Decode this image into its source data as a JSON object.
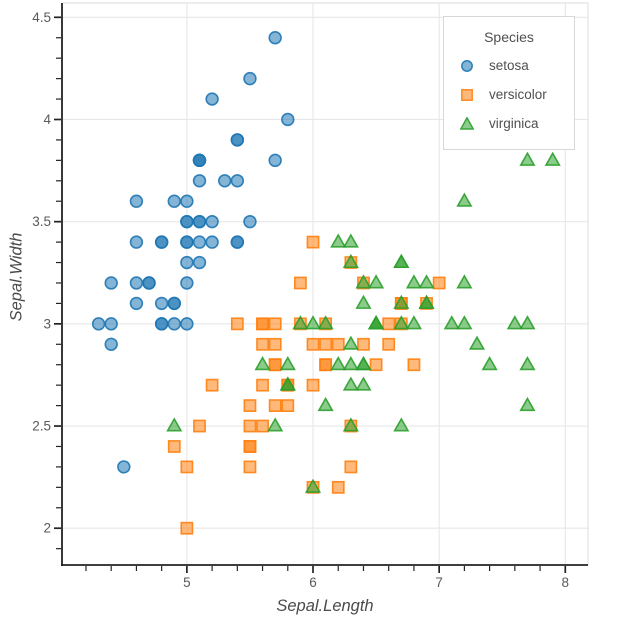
{
  "figure": {
    "background": "#ffffff"
  },
  "axes": {
    "x": {
      "title": "Sepal.Length",
      "major_ticks": [
        {
          "v": 5,
          "label": "5"
        },
        {
          "v": 6,
          "label": "6"
        },
        {
          "v": 7,
          "label": "7"
        },
        {
          "v": 8,
          "label": "8"
        }
      ],
      "minor_ticks": [
        4.2,
        4.4,
        4.6,
        4.8,
        5.2,
        5.4,
        5.6,
        5.8,
        6.2,
        6.4,
        6.6,
        6.8,
        7.2,
        7.4,
        7.6,
        7.8
      ]
    },
    "y": {
      "title": "Sepal.Width",
      "major_ticks": [
        {
          "v": 2,
          "label": "2"
        },
        {
          "v": 2.5,
          "label": "2.5"
        },
        {
          "v": 3,
          "label": "3"
        },
        {
          "v": 3.5,
          "label": "3.5"
        },
        {
          "v": 4,
          "label": "4"
        },
        {
          "v": 4.5,
          "label": "4.5"
        }
      ],
      "minor_ticks": [
        1.9,
        2.1,
        2.2,
        2.3,
        2.4,
        2.6,
        2.7,
        2.8,
        2.9,
        3.1,
        3.2,
        3.3,
        3.4,
        3.6,
        3.7,
        3.8,
        3.9,
        4.1,
        4.2,
        4.3,
        4.4
      ]
    }
  },
  "legend": {
    "title": "Species",
    "items": [
      {
        "label": "setosa",
        "marker": "circle",
        "color": "#1f77b4"
      },
      {
        "label": "versicolor",
        "marker": "square",
        "color": "#ff7f0e"
      },
      {
        "label": "virginica",
        "marker": "triangle",
        "color": "#2ca02c"
      }
    ]
  },
  "style": {
    "grid_color": "#e7e7e7",
    "frame_color": "#e2e2e2",
    "spine_color": "#222222",
    "tick_color": "#222222",
    "tick_label_color": "#5a5a5a",
    "axis_title_color": "#4a4a4a",
    "legend_border_color": "#d8d8d8",
    "fill_opacity": 0.55,
    "stroke_opacity": 0.9
  },
  "chart_data": {
    "type": "scatter",
    "title": "",
    "xlabel": "Sepal.Length",
    "ylabel": "Sepal.Width",
    "xlim": [
      4.01,
      8.18
    ],
    "ylim": [
      1.82,
      4.57
    ],
    "x_ticks": [
      5,
      6,
      7,
      8
    ],
    "y_ticks": [
      2,
      2.5,
      3,
      3.5,
      4,
      4.5
    ],
    "grid": "major",
    "legend_title": "Species",
    "legend_position": "upper right",
    "series": [
      {
        "name": "setosa",
        "marker": "circle",
        "color": "#1f77b4",
        "points": [
          [
            5.1,
            3.5
          ],
          [
            4.9,
            3.0
          ],
          [
            4.7,
            3.2
          ],
          [
            4.6,
            3.1
          ],
          [
            5.0,
            3.6
          ],
          [
            5.4,
            3.9
          ],
          [
            4.6,
            3.4
          ],
          [
            5.0,
            3.4
          ],
          [
            4.4,
            2.9
          ],
          [
            4.9,
            3.1
          ],
          [
            5.4,
            3.7
          ],
          [
            4.8,
            3.4
          ],
          [
            4.8,
            3.0
          ],
          [
            4.3,
            3.0
          ],
          [
            5.8,
            4.0
          ],
          [
            5.7,
            4.4
          ],
          [
            5.4,
            3.9
          ],
          [
            5.1,
            3.5
          ],
          [
            5.7,
            3.8
          ],
          [
            5.1,
            3.8
          ],
          [
            5.4,
            3.4
          ],
          [
            5.1,
            3.7
          ],
          [
            4.6,
            3.6
          ],
          [
            5.1,
            3.3
          ],
          [
            4.8,
            3.4
          ],
          [
            5.0,
            3.0
          ],
          [
            5.0,
            3.4
          ],
          [
            5.2,
            3.5
          ],
          [
            5.2,
            3.4
          ],
          [
            4.7,
            3.2
          ],
          [
            4.8,
            3.1
          ],
          [
            5.4,
            3.4
          ],
          [
            5.2,
            4.1
          ],
          [
            5.5,
            4.2
          ],
          [
            4.9,
            3.1
          ],
          [
            5.0,
            3.2
          ],
          [
            5.5,
            3.5
          ],
          [
            4.9,
            3.6
          ],
          [
            4.4,
            3.0
          ],
          [
            5.1,
            3.4
          ],
          [
            5.0,
            3.5
          ],
          [
            4.5,
            2.3
          ],
          [
            4.4,
            3.2
          ],
          [
            5.0,
            3.5
          ],
          [
            5.1,
            3.8
          ],
          [
            4.8,
            3.0
          ],
          [
            5.1,
            3.8
          ],
          [
            4.6,
            3.2
          ],
          [
            5.3,
            3.7
          ],
          [
            5.0,
            3.3
          ]
        ]
      },
      {
        "name": "versicolor",
        "marker": "square",
        "color": "#ff7f0e",
        "points": [
          [
            7.0,
            3.2
          ],
          [
            6.4,
            3.2
          ],
          [
            6.9,
            3.1
          ],
          [
            5.5,
            2.3
          ],
          [
            6.5,
            2.8
          ],
          [
            5.7,
            2.8
          ],
          [
            6.3,
            3.3
          ],
          [
            4.9,
            2.4
          ],
          [
            6.6,
            2.9
          ],
          [
            5.2,
            2.7
          ],
          [
            5.0,
            2.0
          ],
          [
            5.9,
            3.0
          ],
          [
            6.0,
            2.2
          ],
          [
            6.1,
            2.9
          ],
          [
            5.6,
            2.9
          ],
          [
            6.7,
            3.1
          ],
          [
            5.6,
            3.0
          ],
          [
            5.8,
            2.7
          ],
          [
            6.2,
            2.2
          ],
          [
            5.6,
            2.5
          ],
          [
            5.9,
            3.2
          ],
          [
            6.1,
            2.8
          ],
          [
            6.3,
            2.5
          ],
          [
            6.1,
            2.8
          ],
          [
            6.4,
            2.9
          ],
          [
            6.6,
            3.0
          ],
          [
            6.8,
            2.8
          ],
          [
            6.7,
            3.0
          ],
          [
            6.0,
            2.9
          ],
          [
            5.7,
            2.6
          ],
          [
            5.5,
            2.4
          ],
          [
            5.5,
            2.4
          ],
          [
            5.8,
            2.7
          ],
          [
            6.0,
            2.7
          ],
          [
            5.4,
            3.0
          ],
          [
            6.0,
            3.4
          ],
          [
            6.7,
            3.1
          ],
          [
            6.3,
            2.3
          ],
          [
            5.6,
            3.0
          ],
          [
            5.5,
            2.5
          ],
          [
            5.5,
            2.6
          ],
          [
            6.1,
            3.0
          ],
          [
            5.8,
            2.6
          ],
          [
            5.0,
            2.3
          ],
          [
            5.6,
            2.7
          ],
          [
            5.7,
            3.0
          ],
          [
            5.7,
            2.9
          ],
          [
            6.2,
            2.9
          ],
          [
            5.1,
            2.5
          ],
          [
            5.7,
            2.8
          ]
        ]
      },
      {
        "name": "virginica",
        "marker": "triangle",
        "color": "#2ca02c",
        "points": [
          [
            6.3,
            3.3
          ],
          [
            5.8,
            2.7
          ],
          [
            7.1,
            3.0
          ],
          [
            6.3,
            2.9
          ],
          [
            6.5,
            3.0
          ],
          [
            7.6,
            3.0
          ],
          [
            4.9,
            2.5
          ],
          [
            7.3,
            2.9
          ],
          [
            6.7,
            2.5
          ],
          [
            7.2,
            3.6
          ],
          [
            6.5,
            3.2
          ],
          [
            6.4,
            2.7
          ],
          [
            6.8,
            3.0
          ],
          [
            5.7,
            2.5
          ],
          [
            5.8,
            2.8
          ],
          [
            6.4,
            3.2
          ],
          [
            6.5,
            3.0
          ],
          [
            7.7,
            3.8
          ],
          [
            7.7,
            2.6
          ],
          [
            6.0,
            2.2
          ],
          [
            6.9,
            3.2
          ],
          [
            5.6,
            2.8
          ],
          [
            7.7,
            2.8
          ],
          [
            6.3,
            2.7
          ],
          [
            6.7,
            3.3
          ],
          [
            7.2,
            3.2
          ],
          [
            6.2,
            2.8
          ],
          [
            6.1,
            3.0
          ],
          [
            6.4,
            2.8
          ],
          [
            7.2,
            3.0
          ],
          [
            7.4,
            2.8
          ],
          [
            7.9,
            3.8
          ],
          [
            6.4,
            2.8
          ],
          [
            6.3,
            2.8
          ],
          [
            6.1,
            2.6
          ],
          [
            7.7,
            3.0
          ],
          [
            6.3,
            3.4
          ],
          [
            6.4,
            3.1
          ],
          [
            6.0,
            3.0
          ],
          [
            6.9,
            3.1
          ],
          [
            6.7,
            3.1
          ],
          [
            6.9,
            3.1
          ],
          [
            5.8,
            2.7
          ],
          [
            6.8,
            3.2
          ],
          [
            6.7,
            3.3
          ],
          [
            6.7,
            3.0
          ],
          [
            6.3,
            2.5
          ],
          [
            6.5,
            3.0
          ],
          [
            6.2,
            3.4
          ],
          [
            5.9,
            3.0
          ]
        ]
      }
    ]
  }
}
